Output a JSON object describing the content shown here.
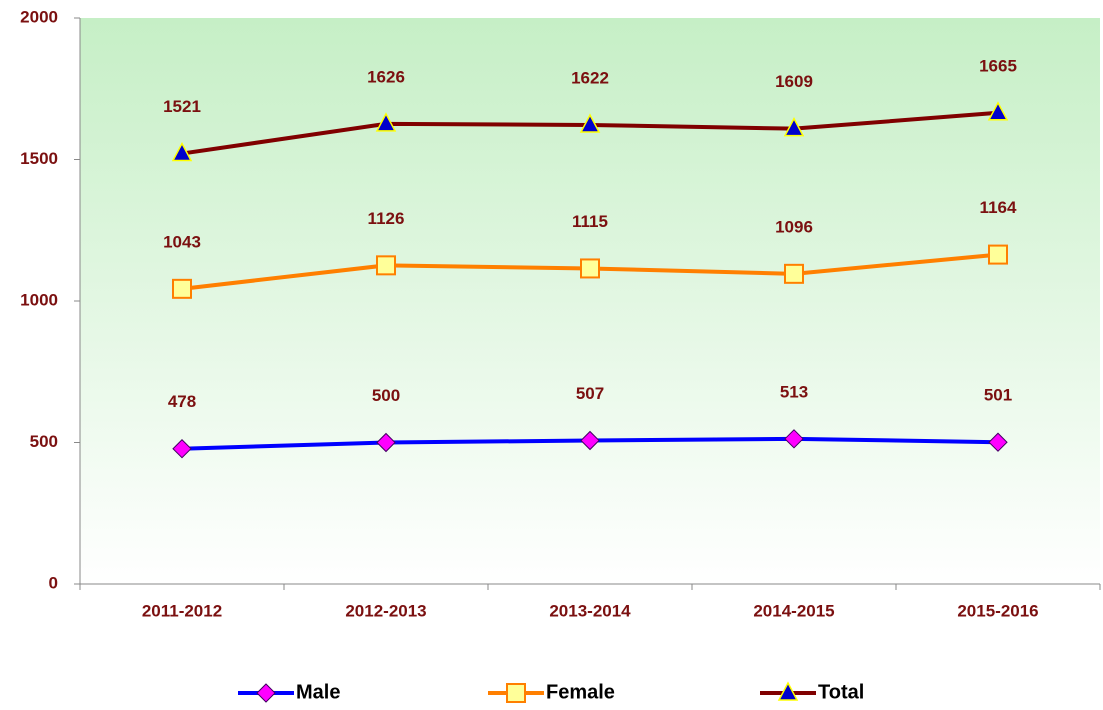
{
  "chart_data": {
    "type": "line",
    "categories": [
      "2011-2012",
      "2012-2013",
      "2013-2014",
      "2014-2015",
      "2015-2016"
    ],
    "series": [
      {
        "name": "Male",
        "color": "#0000ff",
        "marker": "diamond",
        "marker_color": "#ff00ff",
        "values": [
          478,
          500,
          507,
          513,
          501
        ]
      },
      {
        "name": "Female",
        "color": "#ff7f00",
        "marker": "square",
        "marker_color": "#ffff99",
        "values": [
          1043,
          1126,
          1115,
          1096,
          1164
        ]
      },
      {
        "name": "Total",
        "color": "#800000",
        "marker": "triangle",
        "marker_color": "#0000cc",
        "values": [
          1521,
          1626,
          1622,
          1609,
          1665
        ]
      }
    ],
    "ylim": [
      0,
      2000
    ],
    "yticks": [
      0,
      500,
      1000,
      1500,
      2000
    ],
    "legend": "bottom"
  }
}
